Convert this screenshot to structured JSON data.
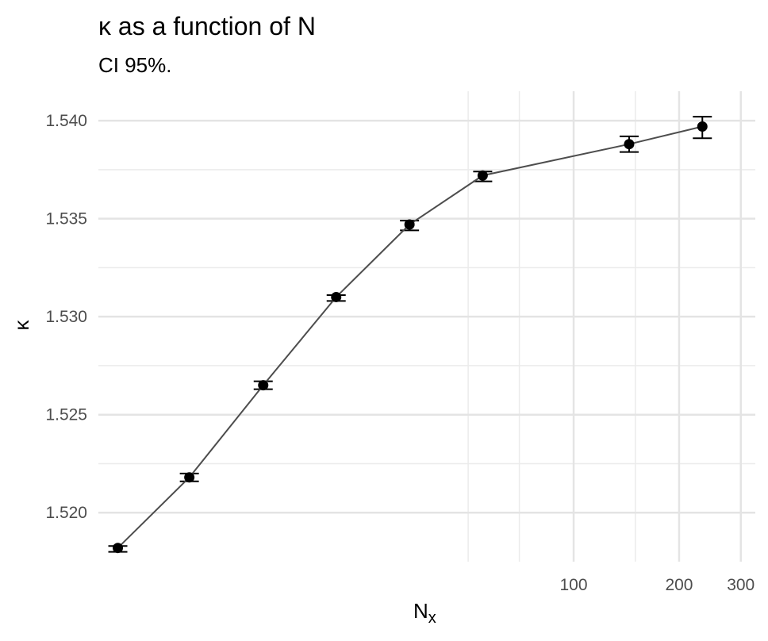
{
  "chart_data": {
    "type": "scatter",
    "title": "κ as a function of  N",
    "subtitle": "CI 95%.",
    "xlabel": "N",
    "xlabel_sub": "x",
    "ylabel": "κ",
    "x_scale": "log",
    "xlim": [
      4.4,
      330
    ],
    "ylim": [
      1.5175,
      1.5415
    ],
    "x_ticks": [
      100,
      200,
      300
    ],
    "y_ticks": [
      1.52,
      1.525,
      1.53,
      1.535,
      1.54
    ],
    "y_tick_labels": [
      "1.520",
      "1.525",
      "1.530",
      "1.535",
      "1.540"
    ],
    "grid": true,
    "line_color": "#4d4d4d",
    "point_color": "#000000",
    "points": [
      {
        "x": 5,
        "y": 1.5182,
        "lo": 1.518,
        "hi": 1.5183
      },
      {
        "x": 8,
        "y": 1.5218,
        "lo": 1.5216,
        "hi": 1.522
      },
      {
        "x": 13,
        "y": 1.5265,
        "lo": 1.5263,
        "hi": 1.5267
      },
      {
        "x": 21,
        "y": 1.531,
        "lo": 1.5308,
        "hi": 1.5311
      },
      {
        "x": 34,
        "y": 1.5347,
        "lo": 1.5344,
        "hi": 1.5349
      },
      {
        "x": 55,
        "y": 1.5372,
        "lo": 1.5369,
        "hi": 1.5374
      },
      {
        "x": 144,
        "y": 1.5388,
        "lo": 1.5384,
        "hi": 1.5392
      },
      {
        "x": 233,
        "y": 1.5397,
        "lo": 1.5391,
        "hi": 1.5402
      }
    ]
  }
}
